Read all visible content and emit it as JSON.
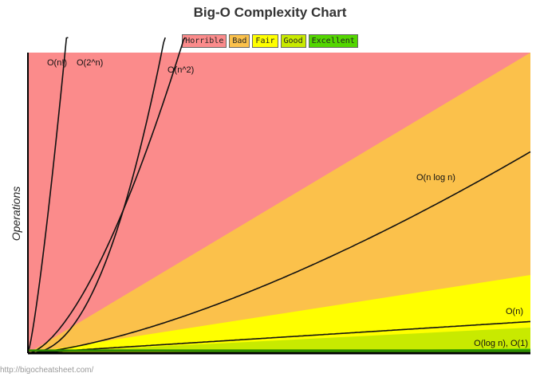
{
  "chart_data": {
    "type": "area",
    "title": "Big-O Complexity Chart",
    "ylabel": "Operations",
    "xlabel": "",
    "source": "http://bigocheatsheet.com/",
    "legend": [
      {
        "name": "Horrible",
        "color": "#fb8b8b"
      },
      {
        "name": "Bad",
        "color": "#fbc14b"
      },
      {
        "name": "Fair",
        "color": "#ffff00"
      },
      {
        "name": "Good",
        "color": "#c8ea00"
      },
      {
        "name": "Excellent",
        "color": "#53d600"
      }
    ],
    "xlim": [
      0,
      100
    ],
    "ylim": [
      0,
      100
    ],
    "regions": [
      {
        "name": "Horrible",
        "color": "#fb8b8b",
        "upper_at_xmax": 100
      },
      {
        "name": "Bad",
        "color": "#fbc14b",
        "upper_at_xmax": 100
      },
      {
        "name": "Fair",
        "color": "#ffff00",
        "upper_at_xmax": 26
      },
      {
        "name": "Good",
        "color": "#c8ea00",
        "upper_at_xmax": 8.5
      },
      {
        "name": "Excellent",
        "color": "#53d600",
        "upper_at_xmax": 1.5
      }
    ],
    "series": [
      {
        "name": "O(n!)",
        "curve": "factorial"
      },
      {
        "name": "O(2^n)",
        "curve": "exponential"
      },
      {
        "name": "O(n^2)",
        "curve": "quadratic"
      },
      {
        "name": "O(n log n)",
        "curve": "nlogn"
      },
      {
        "name": "O(n)",
        "curve": "linear"
      },
      {
        "name": "O(log n), O(1)",
        "curve": "constant"
      }
    ],
    "grid": false
  }
}
